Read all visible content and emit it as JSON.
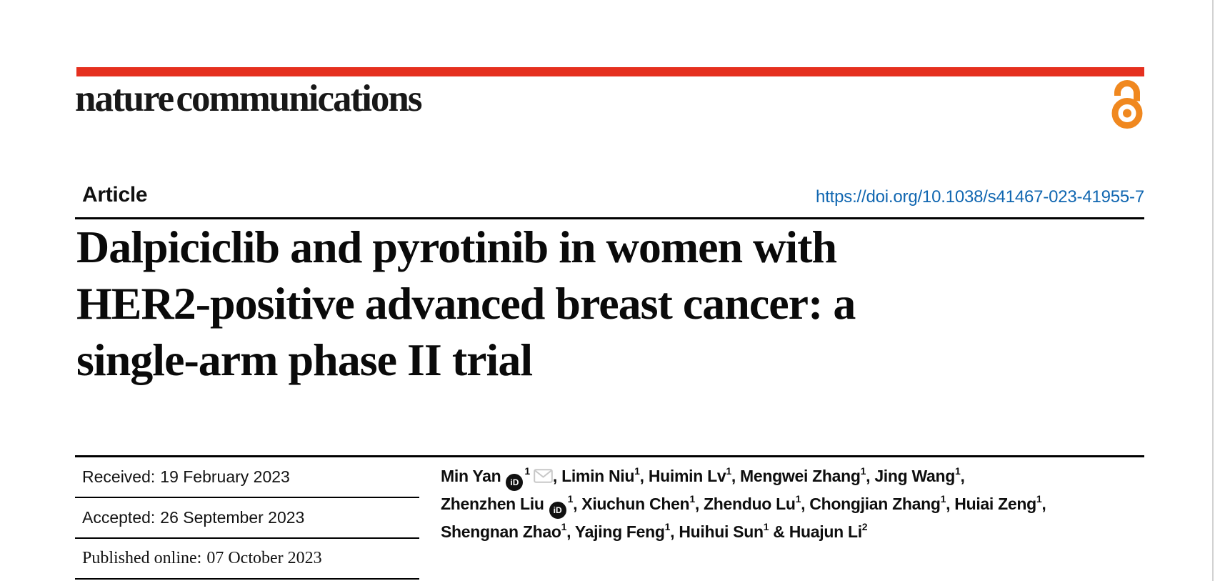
{
  "masthead": {
    "logo_text": "nature communications",
    "accent_red": "#e5301f",
    "open_access_orange": "#f0881f",
    "open_access_icon": "open-access-padlock"
  },
  "article_header": {
    "kicker": "Article",
    "doi_link": "https://doi.org/10.1038/s41467-023-41955-7",
    "doi_color": "#1167b1"
  },
  "title": {
    "full": "Dalpiciclib and pyrotinib in women with HER2-positive advanced breast cancer: a single-arm phase II trial",
    "lines": [
      "Dalpiciclib and pyrotinib in women with",
      "HER2-positive advanced breast cancer: a",
      "single-arm phase II trial"
    ]
  },
  "dates": {
    "rows": [
      {
        "label": "Received:",
        "value": "19 February 2023"
      },
      {
        "label": "Accepted:",
        "value": "26 September 2023"
      },
      {
        "label": "Published online:",
        "value": "07 October 2023"
      }
    ]
  },
  "authors": {
    "orcid_glyph": "iD",
    "orcid_icon": "orcid-id-badge",
    "email_icon": "envelope",
    "lines": [
      [
        {
          "name": "Min Yan",
          "orcid": true,
          "sup": "1",
          "email": true,
          "sep": ", "
        },
        {
          "name": "Limin Niu",
          "sup": "1",
          "sep": ", "
        },
        {
          "name": "Huimin Lv",
          "sup": "1",
          "sep": ", "
        },
        {
          "name": "Mengwei Zhang",
          "sup": "1",
          "sep": ", "
        },
        {
          "name": "Jing Wang",
          "sup": "1",
          "sep": ","
        }
      ],
      [
        {
          "name": "Zhenzhen Liu",
          "orcid": true,
          "sup": "1",
          "sep": ", "
        },
        {
          "name": "Xiuchun Chen",
          "sup": "1",
          "sep": ", "
        },
        {
          "name": "Zhenduo Lu",
          "sup": "1",
          "sep": ", "
        },
        {
          "name": "Chongjian Zhang",
          "sup": "1",
          "sep": ", "
        },
        {
          "name": "Huiai Zeng",
          "sup": "1",
          "sep": ","
        }
      ],
      [
        {
          "name": "Shengnan Zhao",
          "sup": "1",
          "sep": ", "
        },
        {
          "name": "Yajing Feng",
          "sup": "1",
          "sep": ", "
        },
        {
          "name": "Huihui Sun",
          "sup": "1",
          "sep": " & "
        },
        {
          "name": "Huajun Li",
          "sup": "2",
          "sep": ""
        }
      ]
    ]
  }
}
